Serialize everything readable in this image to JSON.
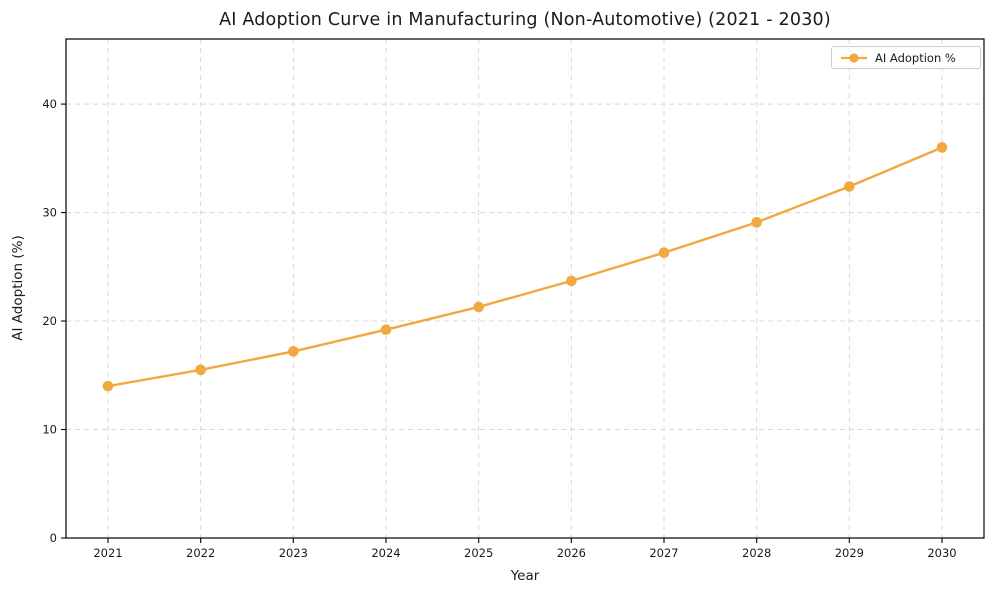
{
  "chart_data": {
    "type": "line",
    "title": "AI Adoption Curve in Manufacturing (Non-Automotive) (2021 - 2030)",
    "xlabel": "Year",
    "ylabel": "AI Adoption (%)",
    "x": [
      2021,
      2022,
      2023,
      2024,
      2025,
      2026,
      2027,
      2028,
      2029,
      2030
    ],
    "series": [
      {
        "name": "AI Adoption %",
        "values": [
          14.0,
          15.5,
          17.2,
          19.2,
          21.3,
          23.7,
          26.3,
          29.1,
          32.4,
          36.0
        ],
        "color": "#F1A83E",
        "marker": "circle"
      }
    ],
    "ylim": [
      0,
      46
    ],
    "yticks": [
      0,
      10,
      20,
      30,
      40
    ],
    "grid": true,
    "grid_style": "dashed",
    "grid_color": "#d8d8d8",
    "spine_color": "#000000",
    "tick_label_color": "#1a1a1a",
    "legend_position": "upper right",
    "legend_entries": [
      "AI Adoption %"
    ]
  }
}
